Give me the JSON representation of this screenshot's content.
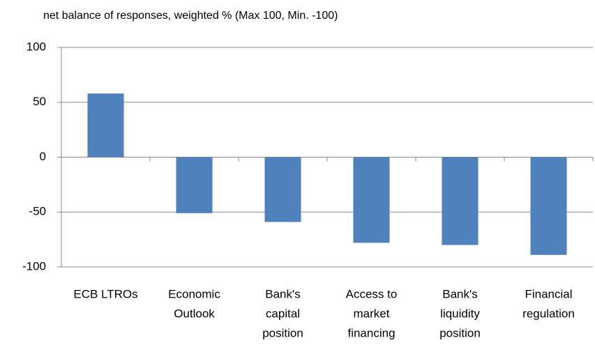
{
  "chart_data": {
    "type": "bar",
    "title": "net balance of responses, weighted % (Max 100, Min. -100)",
    "categories": [
      [
        "ECB LTROs"
      ],
      [
        "Economic",
        "Outlook"
      ],
      [
        "Bank's",
        "capital",
        "position"
      ],
      [
        "Access to",
        "market",
        "financing"
      ],
      [
        "Bank's",
        "liquidity",
        "position"
      ],
      [
        "Financial",
        "regulation"
      ]
    ],
    "values": [
      58,
      -51,
      -59,
      -78,
      -80,
      -89
    ],
    "color": "#4f81bd",
    "ylim": [
      -100,
      100
    ],
    "yticks": [
      -100,
      -50,
      0,
      50,
      100
    ],
    "grid": true
  }
}
